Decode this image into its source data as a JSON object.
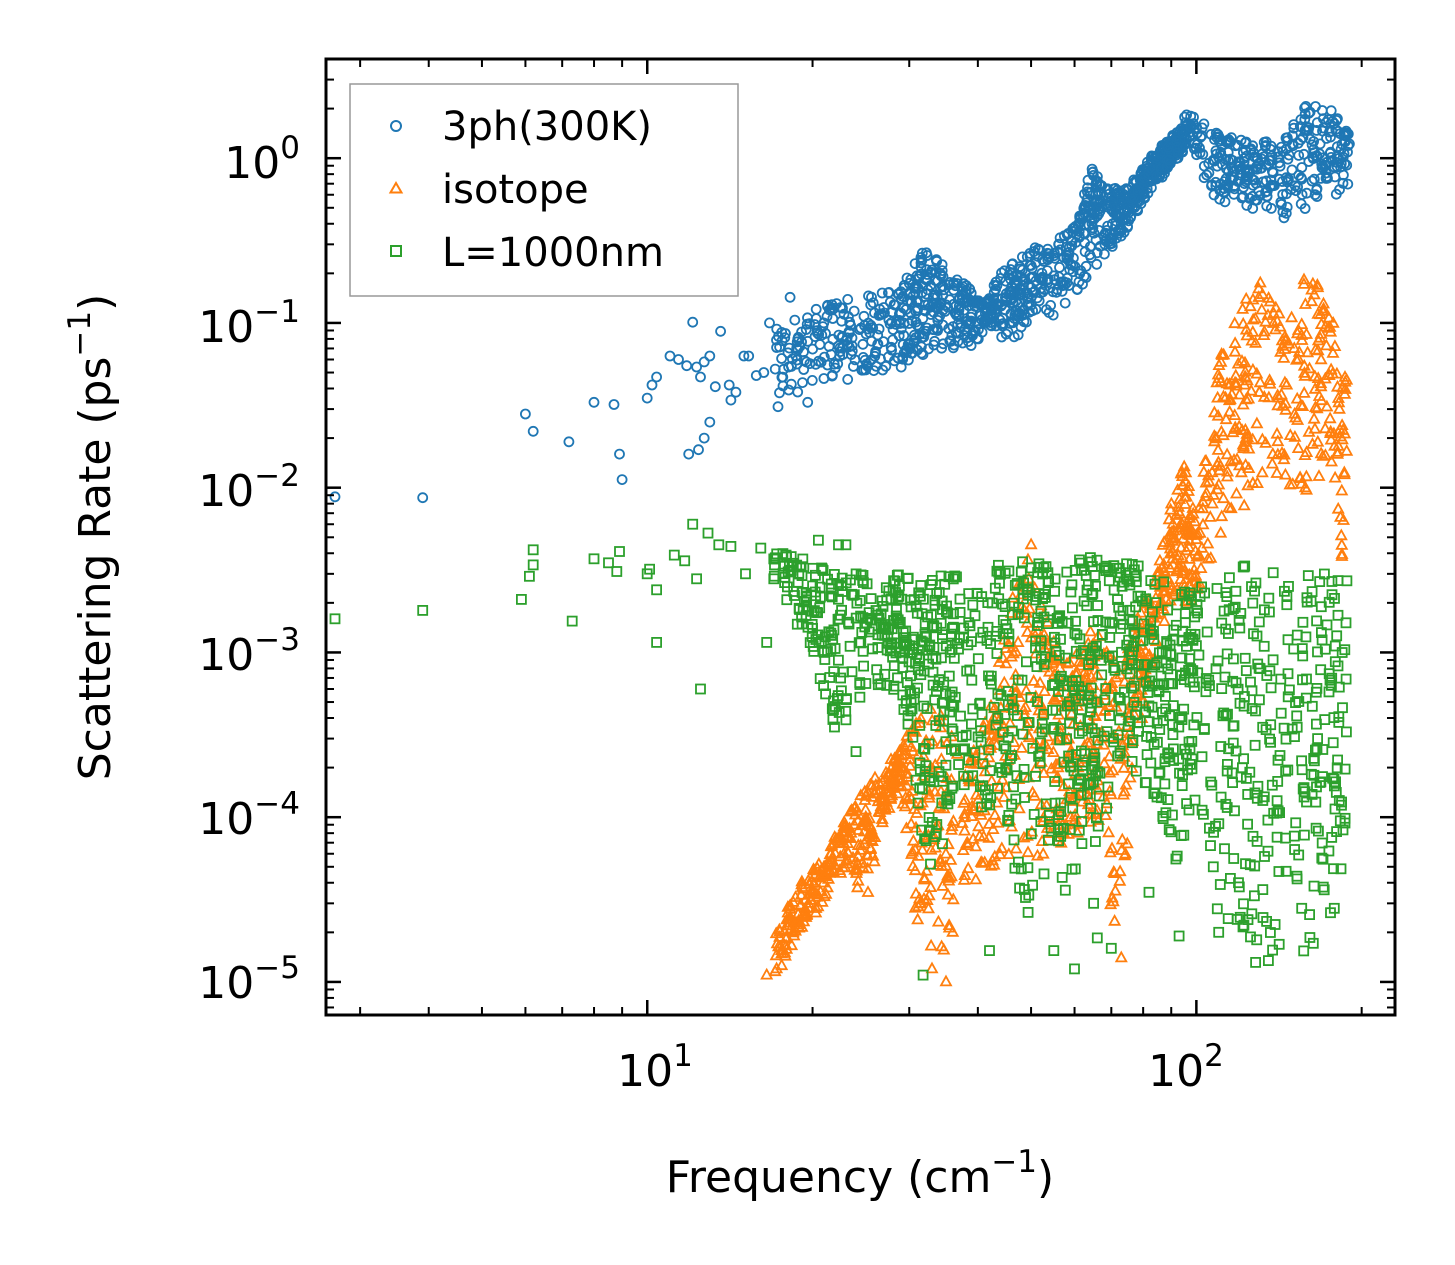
{
  "chart_data": {
    "type": "scatter",
    "xscale": "log",
    "yscale": "log",
    "xlim": [
      2.6,
      230
    ],
    "ylim": [
      6.3e-06,
      4.0
    ],
    "xlabel": "Frequency (cm⁻¹)",
    "xlabel_parts": {
      "main": "Frequency (cm",
      "sup": "−1",
      "close": ")"
    },
    "ylabel": "Scattering Rate (ps⁻¹)",
    "ylabel_parts": {
      "main": "Scattering Rate (ps",
      "sup": "−1",
      "close": ")"
    },
    "x_ticks": [
      {
        "value": 10,
        "base": "10",
        "exp": "1"
      },
      {
        "value": 100,
        "base": "10",
        "exp": "2"
      }
    ],
    "y_ticks": [
      {
        "value": 1,
        "base": "10",
        "exp": "0"
      },
      {
        "value": 0.1,
        "base": "10",
        "exp": "−1"
      },
      {
        "value": 0.01,
        "base": "10",
        "exp": "−2"
      },
      {
        "value": 0.001,
        "base": "10",
        "exp": "−3"
      },
      {
        "value": 0.0001,
        "base": "10",
        "exp": "−4"
      },
      {
        "value": 1e-05,
        "base": "10",
        "exp": "−5"
      }
    ],
    "legend_position": "upper-left",
    "series": [
      {
        "name": "3ph(300K)",
        "marker": "circle",
        "color": "#1f77b4",
        "points": [
          [
            2.7,
            0.0088
          ],
          [
            3.9,
            0.0087
          ],
          [
            6.0,
            0.028
          ],
          [
            6.2,
            0.022
          ],
          [
            7.2,
            0.019
          ],
          [
            8.0,
            0.033
          ],
          [
            8.7,
            0.032
          ],
          [
            8.9,
            0.016
          ],
          [
            9.0,
            0.0112
          ],
          [
            10.0,
            0.035
          ],
          [
            10.2,
            0.042
          ],
          [
            10.4,
            0.047
          ],
          [
            11.0,
            0.063
          ],
          [
            11.4,
            0.06
          ],
          [
            11.8,
            0.055
          ],
          [
            12.1,
            0.101
          ],
          [
            12.3,
            0.054
          ],
          [
            12.5,
            0.047
          ],
          [
            12.7,
            0.058
          ],
          [
            13.0,
            0.063
          ],
          [
            13.3,
            0.041
          ],
          [
            13.6,
            0.089
          ],
          [
            14.1,
            0.042
          ],
          [
            14.5,
            0.038
          ],
          [
            15.0,
            0.063
          ],
          [
            15.3,
            0.063
          ],
          [
            15.8,
            0.048
          ],
          [
            16.3,
            0.05
          ],
          [
            16.7,
            0.1
          ],
          [
            17.3,
            0.031
          ],
          [
            17.6,
            0.078
          ],
          [
            18.2,
            0.143
          ],
          [
            18.8,
            0.08
          ],
          [
            19.6,
            0.033
          ],
          [
            20.4,
            0.087
          ],
          [
            21.3,
            0.128
          ],
          [
            21.7,
            0.129
          ],
          [
            22.5,
            0.124
          ],
          [
            13.0,
            0.025
          ],
          [
            12.4,
            0.017
          ],
          [
            12.7,
            0.02
          ],
          [
            11.9,
            0.016
          ],
          [
            14.2,
            0.034
          ]
        ],
        "dense_bands": [
          [
            17.0,
            0.035,
            0.09
          ],
          [
            20.0,
            0.04,
            0.12
          ],
          [
            23.0,
            0.045,
            0.14
          ],
          [
            26.0,
            0.05,
            0.15
          ],
          [
            29.0,
            0.05,
            0.16
          ],
          [
            31.0,
            0.06,
            0.26
          ],
          [
            33.0,
            0.065,
            0.28
          ],
          [
            35.0,
            0.07,
            0.22
          ],
          [
            38.0,
            0.07,
            0.18
          ],
          [
            41.0,
            0.075,
            0.13
          ],
          [
            44.0,
            0.08,
            0.2
          ],
          [
            47.0,
            0.08,
            0.24
          ],
          [
            50.0,
            0.1,
            0.28
          ],
          [
            55.0,
            0.11,
            0.32
          ],
          [
            60.0,
            0.14,
            0.38
          ],
          [
            64.0,
            0.2,
            0.9
          ],
          [
            68.0,
            0.25,
            0.7
          ],
          [
            72.0,
            0.3,
            0.65
          ],
          [
            76.0,
            0.4,
            0.7
          ],
          [
            80.0,
            0.55,
            0.9
          ],
          [
            84.0,
            0.7,
            1.1
          ],
          [
            88.0,
            0.8,
            1.3
          ],
          [
            92.0,
            0.95,
            1.5
          ],
          [
            96.0,
            1.1,
            1.9
          ],
          [
            110.0,
            0.5,
            1.4
          ],
          [
            120.0,
            0.5,
            1.3
          ],
          [
            130.0,
            0.45,
            1.2
          ],
          [
            145.0,
            0.4,
            1.5
          ],
          [
            160.0,
            0.5,
            2.2
          ],
          [
            175.0,
            0.6,
            2.0
          ],
          [
            190.0,
            0.6,
            1.4
          ]
        ]
      },
      {
        "name": "isotope",
        "marker": "triangle",
        "color": "#ff7f0e",
        "points": [
          [
            16.5,
            1.1e-05
          ],
          [
            17.2,
            1.2e-05
          ],
          [
            17.8,
            1.5e-05
          ],
          [
            18.5,
            1.9e-05
          ],
          [
            19.2,
            2.5e-05
          ],
          [
            20.0,
            3.4e-05
          ],
          [
            21.0,
            4.5e-05
          ],
          [
            22.0,
            6e-05
          ],
          [
            23.5,
            8e-05
          ],
          [
            25.0,
            0.0001
          ],
          [
            26.5,
            0.00013
          ],
          [
            28.0,
            0.00018
          ],
          [
            29.5,
            0.00024
          ],
          [
            31.5,
            3e-05
          ],
          [
            33.0,
            1.2e-05
          ],
          [
            35.0,
            1e-05
          ],
          [
            36.0,
            2e-05
          ],
          [
            50.0,
            0.0045
          ],
          [
            65.0,
            0.00025
          ],
          [
            73.0,
            1.4e-05
          ]
        ],
        "dense_bands": [
          [
            17.0,
            1e-05,
            2e-05
          ],
          [
            19.0,
            2e-05,
            4e-05
          ],
          [
            21.0,
            3e-05,
            6e-05
          ],
          [
            23.0,
            5e-05,
            0.0001
          ],
          [
            25.0,
            2.8e-05,
            0.00015
          ],
          [
            27.0,
            0.0001,
            0.0002
          ],
          [
            29.0,
            0.00015,
            0.00028
          ],
          [
            31.0,
            2e-05,
            0.0004
          ],
          [
            34.0,
            1.2e-05,
            0.0005
          ],
          [
            38.0,
            4e-05,
            0.0002
          ],
          [
            42.0,
            4e-05,
            0.0005
          ],
          [
            46.0,
            5e-05,
            0.0025
          ],
          [
            50.0,
            4e-05,
            0.004
          ],
          [
            54.0,
            6e-05,
            0.0015
          ],
          [
            58.0,
            7e-05,
            0.0009
          ],
          [
            62.0,
            7e-05,
            0.0012
          ],
          [
            66.0,
            8e-05,
            0.0015
          ],
          [
            72.0,
            1.4e-05,
            0.0008
          ],
          [
            78.0,
            0.0003,
            0.0015
          ],
          [
            84.0,
            0.0008,
            0.003
          ],
          [
            90.0,
            0.002,
            0.008
          ],
          [
            95.0,
            0.002,
            0.014
          ],
          [
            100.0,
            0.002,
            0.006
          ],
          [
            110.0,
            0.005,
            0.06
          ],
          [
            120.0,
            0.006,
            0.12
          ],
          [
            130.0,
            0.008,
            0.2
          ],
          [
            145.0,
            0.01,
            0.1
          ],
          [
            160.0,
            0.008,
            0.25
          ],
          [
            175.0,
            0.015,
            0.12
          ],
          [
            188.0,
            0.002,
            0.06
          ]
        ]
      },
      {
        "name": "L=1000nm",
        "marker": "square",
        "color": "#2ca02c",
        "points": [
          [
            2.7,
            0.0016
          ],
          [
            3.9,
            0.0018
          ],
          [
            5.9,
            0.0021
          ],
          [
            6.1,
            0.0029
          ],
          [
            6.2,
            0.0034
          ],
          [
            6.2,
            0.0042
          ],
          [
            7.3,
            0.00155
          ],
          [
            8.0,
            0.0037
          ],
          [
            8.5,
            0.0035
          ],
          [
            8.8,
            0.0031
          ],
          [
            8.9,
            0.0041
          ],
          [
            10.0,
            0.003
          ],
          [
            10.1,
            0.0032
          ],
          [
            10.4,
            0.0024
          ],
          [
            10.4,
            0.00115
          ],
          [
            11.2,
            0.0039
          ],
          [
            11.7,
            0.0036
          ],
          [
            12.1,
            0.006
          ],
          [
            12.3,
            0.0028
          ],
          [
            12.5,
            0.0006
          ],
          [
            12.9,
            0.0053
          ],
          [
            13.5,
            0.0045
          ],
          [
            14.2,
            0.0044
          ],
          [
            15.1,
            0.003
          ],
          [
            16.1,
            0.0043
          ],
          [
            16.5,
            0.00115
          ],
          [
            17.9,
            0.0039
          ],
          [
            19.0,
            0.0033
          ],
          [
            20.5,
            0.0048
          ],
          [
            22.3,
            0.0045
          ],
          [
            23.0,
            0.0045
          ],
          [
            17.0,
            0.0028
          ],
          [
            18.0,
            0.0025
          ],
          [
            19.5,
            0.0022
          ],
          [
            20.0,
            0.0014
          ],
          [
            21.0,
            0.001
          ],
          [
            22.0,
            0.00047
          ],
          [
            23.0,
            0.00039
          ],
          [
            24.0,
            0.00025
          ],
          [
            22.5,
            0.0007
          ],
          [
            31.8,
            1.1e-05
          ],
          [
            42.0,
            1.55e-05
          ],
          [
            55.0,
            1.55e-05
          ],
          [
            60.0,
            1.2e-05
          ],
          [
            66.0,
            1.85e-05
          ],
          [
            70.0,
            1.6e-05
          ],
          [
            82.0,
            3.5e-05
          ],
          [
            93.0,
            1.9e-05
          ],
          [
            65.0,
            3e-05
          ],
          [
            45.0,
            0.00026
          ]
        ],
        "dense_bands": [
          [
            17.0,
            0.0025,
            0.004
          ],
          [
            20.0,
            0.001,
            0.004
          ],
          [
            22.0,
            0.0003,
            0.003
          ],
          [
            25.0,
            0.0006,
            0.003
          ],
          [
            28.0,
            0.0006,
            0.003
          ],
          [
            30.0,
            0.0003,
            0.003
          ],
          [
            32.0,
            5e-05,
            0.0025
          ],
          [
            34.0,
            3e-05,
            0.003
          ],
          [
            36.0,
            0.0001,
            0.003
          ],
          [
            40.0,
            0.0001,
            0.003
          ],
          [
            44.0,
            0.0001,
            0.0035
          ],
          [
            48.0,
            2e-05,
            0.004
          ],
          [
            52.0,
            4e-05,
            0.0035
          ],
          [
            56.0,
            3e-05,
            0.003
          ],
          [
            60.0,
            4e-05,
            0.0035
          ],
          [
            64.0,
            6e-05,
            0.004
          ],
          [
            68.0,
            8e-05,
            0.0035
          ],
          [
            74.0,
            0.0003,
            0.004
          ],
          [
            80.0,
            0.0001,
            0.0035
          ],
          [
            86.0,
            0.0001,
            0.003
          ],
          [
            92.0,
            4e-05,
            0.003
          ],
          [
            98.0,
            0.0001,
            0.0025
          ],
          [
            110.0,
            1.3e-05,
            0.0025
          ],
          [
            120.0,
            1.2e-05,
            0.0035
          ],
          [
            130.0,
            1.2e-05,
            0.0035
          ],
          [
            145.0,
            1.5e-05,
            0.003
          ],
          [
            160.0,
            1.2e-05,
            0.003
          ],
          [
            175.0,
            1.5e-05,
            0.003
          ],
          [
            188.0,
            4e-05,
            0.003
          ]
        ]
      }
    ]
  }
}
